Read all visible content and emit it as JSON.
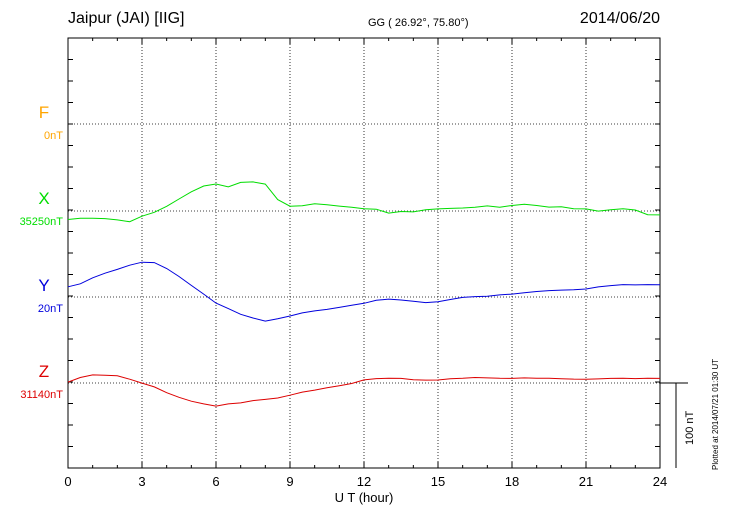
{
  "header": {
    "station": "Jaipur (JAI)  [IIG]",
    "coords": "GG ( 26.92°,  75.80°)",
    "date": "2014/06/20"
  },
  "plotted_note": "Plotted at 2014/07/21 01:30 UT",
  "colors": {
    "F": "#ffa500",
    "X": "#00dd00",
    "Y": "#0000dd",
    "Z": "#dd0000"
  },
  "chart_data": {
    "type": "line",
    "title": "Jaipur (JAI)  [IIG]",
    "xlabel": "U T (hour)",
    "xlim": [
      0,
      24
    ],
    "x_ticks": [
      "0",
      "3",
      "6",
      "9",
      "12",
      "15",
      "18",
      "21",
      "24"
    ],
    "scale_bar": "100 nT",
    "grid": true,
    "series": [
      {
        "name": "F",
        "baseline_label": "0nT",
        "values": []
      },
      {
        "name": "X",
        "baseline_label": "35250nT",
        "x": [
          0,
          0.5,
          1,
          1.5,
          2,
          2.5,
          3,
          3.5,
          4,
          4.5,
          5,
          5.5,
          6,
          6.5,
          7,
          7.5,
          8,
          8.5,
          9,
          9.5,
          10,
          10.5,
          11,
          11.5,
          12,
          12.5,
          13,
          13.5,
          14,
          14.5,
          15,
          15.5,
          16,
          16.5,
          17,
          17.5,
          18,
          18.5,
          19,
          19.5,
          20,
          20.5,
          21,
          21.5,
          22,
          22.5,
          23,
          23.5,
          24
        ],
        "values": [
          -10,
          -9,
          -9,
          -9,
          -10,
          -12,
          -6,
          -2,
          5,
          14,
          23,
          30,
          32,
          28,
          33,
          34,
          32,
          14,
          6,
          6,
          8,
          7,
          6,
          5,
          3,
          2,
          -3,
          -1,
          -1,
          2,
          3,
          3,
          3,
          4,
          6,
          5,
          7,
          8,
          6,
          4,
          5,
          3,
          3,
          0,
          1,
          2,
          1,
          -4,
          -4
        ]
      },
      {
        "name": "Y",
        "baseline_label": "20nT",
        "x": [
          0,
          0.5,
          1,
          1.5,
          2,
          2.5,
          3,
          3.5,
          4,
          4.5,
          5,
          5.5,
          6,
          6.5,
          7,
          7.5,
          8,
          8.5,
          9,
          9.5,
          10,
          10.5,
          11,
          11.5,
          12,
          12.5,
          13,
          13.5,
          14,
          14.5,
          15,
          15.5,
          16,
          16.5,
          17,
          17.5,
          18,
          18.5,
          19,
          19.5,
          20,
          20.5,
          21,
          21.5,
          22,
          22.5,
          23,
          23.5,
          24
        ],
        "values": [
          12,
          15,
          22,
          28,
          33,
          38,
          41,
          40,
          33,
          24,
          14,
          4,
          -7,
          -14,
          -21,
          -25,
          -28,
          -25,
          -22,
          -19,
          -17,
          -15,
          -12,
          -9,
          -7,
          -4,
          -3,
          -4,
          -5,
          -6,
          -5,
          -3,
          -1,
          0,
          1,
          3,
          4,
          5,
          6,
          7,
          8,
          9,
          10,
          12,
          13,
          14,
          14,
          15,
          15
        ]
      },
      {
        "name": "Z",
        "baseline_label": "31140nT",
        "x": [
          0,
          0.5,
          1,
          1.5,
          2,
          2.5,
          3,
          3.5,
          4,
          4.5,
          5,
          5.5,
          6,
          6.5,
          7,
          7.5,
          8,
          8.5,
          9,
          9.5,
          10,
          10.5,
          11,
          11.5,
          12,
          12.5,
          13,
          13.5,
          14,
          14.5,
          15,
          15.5,
          16,
          16.5,
          17,
          17.5,
          18,
          18.5,
          19,
          19.5,
          20,
          20.5,
          21,
          21.5,
          22,
          22.5,
          23,
          23.5,
          24
        ],
        "values": [
          1,
          6,
          9,
          9,
          9,
          5,
          0,
          -5,
          -12,
          -17,
          -21,
          -24,
          -27,
          -25,
          -24,
          -21,
          -19,
          -17,
          -14,
          -11,
          -9,
          -6,
          -3,
          0,
          4,
          5,
          5,
          5,
          4,
          4,
          4,
          5,
          5,
          6,
          6,
          6,
          6,
          6,
          5,
          5,
          5,
          5,
          5,
          5,
          5,
          5,
          5,
          6,
          6
        ]
      }
    ]
  }
}
